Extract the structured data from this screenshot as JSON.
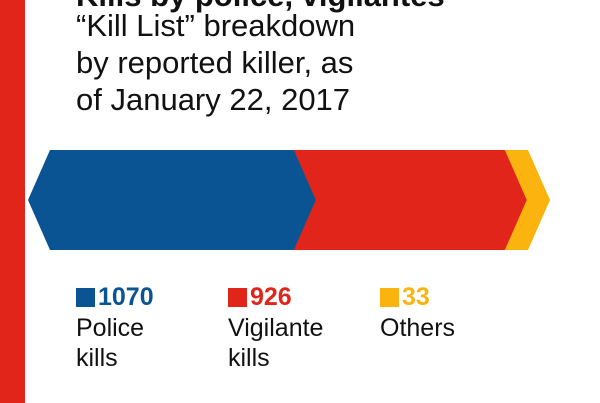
{
  "title_partial": "Kills by police, vigilantes",
  "subtitle_lines": [
    "“Kill List” breakdown",
    "by reported killer, as",
    "of January 22, 2017"
  ],
  "colors": {
    "rule": "#e1251b",
    "police": "#0b5494",
    "vigilante": "#e1251b",
    "others": "#fbb40f"
  },
  "chart_data": {
    "type": "bar",
    "orientation": "horizontal-stacked",
    "series": [
      {
        "name": "Police kills",
        "value": 1070,
        "color": "#0b5494"
      },
      {
        "name": "Vigilante kills",
        "value": 926,
        "color": "#e1251b"
      },
      {
        "name": "Others",
        "value": 33,
        "color": "#fbb40f"
      }
    ]
  },
  "legend": [
    {
      "value": "1070",
      "label_lines": [
        "Police",
        "kills"
      ]
    },
    {
      "value": "926",
      "label_lines": [
        "Vigilante",
        "kills"
      ]
    },
    {
      "value": "33",
      "label_lines": [
        "Others"
      ]
    }
  ]
}
